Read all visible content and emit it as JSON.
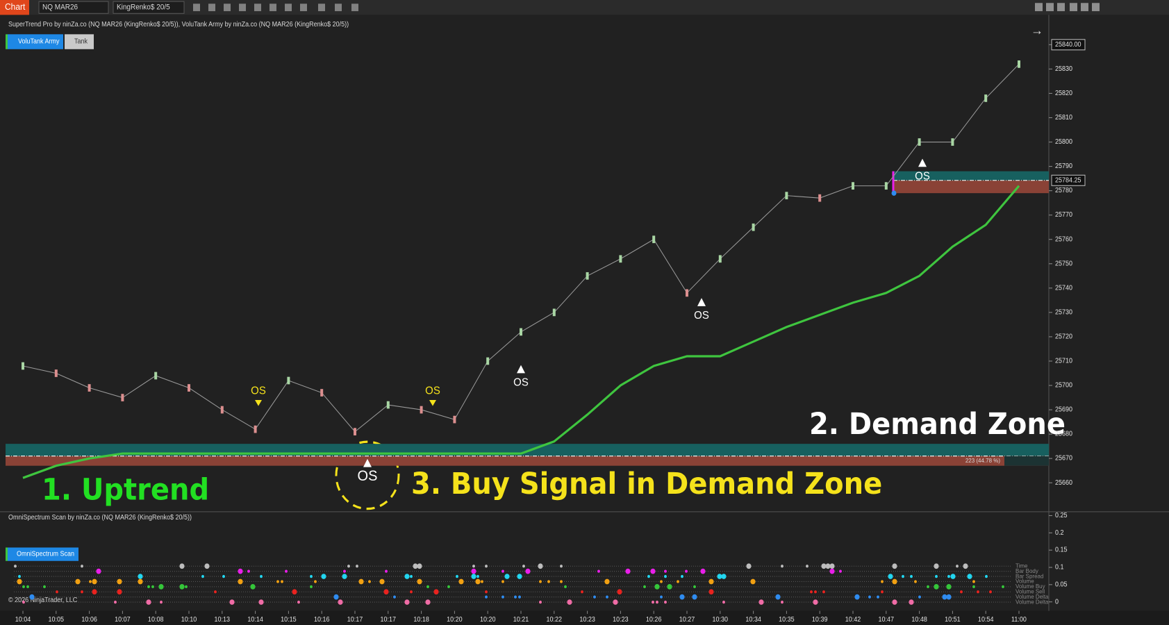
{
  "ui": {
    "tab": "Chart",
    "instrument": "NQ MAR26",
    "bar_type": "KingRenko$ 20/5",
    "indicators": "SuperTrend Pro by ninZa.co (NQ MAR26 (KingRenko$ 20/5)), VoluTank Army by ninZa.co (NQ MAR26 (KingRenko$ 20/5))",
    "buttons": [
      "VoluTank Army",
      "Tank"
    ],
    "scan_button": "OmniSpectrum Scan",
    "copyright": "© 2026 NinjaTrader, LLC"
  },
  "chart_data": [
    {
      "type": "line",
      "categories": [
        "10:04",
        "10:05",
        "10:06",
        "10:07",
        "10:08",
        "10:10",
        "10:13",
        "10:14",
        "10:15",
        "10:16",
        "10:17",
        "10:17",
        "10:18",
        "10:20",
        "10:20",
        "10:21",
        "10:22",
        "10:23",
        "10:23",
        "10:26",
        "10:27",
        "10:30",
        "10:34",
        "10:35",
        "10:39",
        "10:42",
        "10:47",
        "10:48",
        "10:51",
        "10:54",
        "11:00"
      ],
      "series": [
        {
          "name": "Price",
          "color": "#a9d6a4",
          "down_color": "#dc8f8f",
          "values": [
            25708,
            25705,
            25699,
            25695,
            25704,
            25699,
            25690,
            25682,
            25702,
            25697,
            25681,
            25692,
            25690,
            25686,
            25710,
            25722,
            25730,
            25745,
            25752,
            25760,
            25738,
            25752,
            25765,
            25778,
            25777,
            25782,
            25782,
            25800,
            25800,
            25818,
            25832
          ]
        },
        {
          "name": "SuperTrend",
          "color": "#3fc53f",
          "values": [
            25662,
            25667,
            25670,
            25672,
            25672,
            25672,
            25672,
            25672,
            25672,
            25672,
            25672,
            25672,
            25672,
            25672,
            25672,
            25672,
            25677,
            25688,
            25700,
            25708,
            25712,
            25712,
            25718,
            25724,
            25729,
            25734,
            25738,
            25745,
            25757,
            25766,
            25782
          ]
        }
      ],
      "ylim": [
        25648.4,
        25850.4
      ],
      "yticks": [
        25660,
        25670,
        25680,
        25690,
        25700,
        25710,
        25720,
        25730,
        25740,
        25750,
        25760,
        25770,
        25780,
        25790,
        25800,
        25810,
        25820,
        {
          "value": 25840,
          "label": "25840.00"
        },
        25830
      ],
      "last_price": 25784.25,
      "zones": [
        {
          "top": 25676,
          "mid": 25671,
          "bottom": 25667
        },
        {
          "top": 25788,
          "mid": 25784.25,
          "bottom": 25779
        }
      ],
      "zone_colors": {
        "supply": "#17605f",
        "demand": "#8a4236"
      },
      "zone_label": "223 (44.78 %)",
      "signals": [
        {
          "text": "OS",
          "kind": "sell"
        },
        {
          "text": "OS",
          "kind": "sell"
        },
        {
          "text": "OS",
          "kind": "buy"
        },
        {
          "text": "OS",
          "kind": "buy"
        },
        {
          "text": "OS",
          "kind": "buy"
        },
        {
          "text": "OS",
          "kind": "buy"
        }
      ],
      "annotations": [
        "1. Uptrend",
        "2. Demand Zone",
        "3. Buy Signal in Demand Zone"
      ]
    },
    {
      "type": "dot-matrix",
      "title": "OmniSpectrum Scan by ninZa.co (NQ MAR26 (KingRenko$ 20/5))",
      "ylim": [
        -0.026,
        0.259
      ],
      "yticks": [
        0.25,
        0.2,
        0.15,
        0.1,
        0.05,
        0
      ],
      "rows": [
        "Time",
        "Bar Body",
        "Bar Spread",
        "Volume",
        "Volume Buy",
        "Volume Sell",
        "Volume Delta",
        "Volume Delta"
      ],
      "row_colors": [
        "#bdbdbd",
        "#e91fe9",
        "#22d6f0",
        "#f2a112",
        "#35c63a",
        "#e8231f",
        "#2f8cf0",
        "#f06ca6"
      ]
    }
  ]
}
